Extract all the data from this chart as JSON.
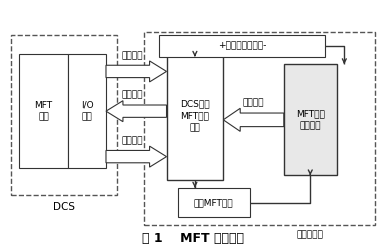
{
  "title": "图 1    MFT 跳闸回路",
  "title_fontsize": 9,
  "fig_bg": "#ffffff",
  "dcs_label": "DCS",
  "hard_label": "硬跳闸回路",
  "box_labels": {
    "mft_logic": "MFT\n逻辑",
    "io_module": "I/O\n模件",
    "dcs_relay": "DCS输出\nMFT继电\n器组",
    "mft_relay": "MFT跳闸\n继电器组",
    "manual_btn": "手动MFT按钮",
    "power_supply": "+硬跳闸回路电源-"
  },
  "arrow_labels": {
    "local_equip_top": "就地设备",
    "local_signal": "就地信号",
    "ctrl_output": "控制输出",
    "local_equip_mid": "就地设备"
  },
  "colors": {
    "line": "#333333",
    "fill_box": "#f0f0f0",
    "fill_white": "#ffffff",
    "dcs_fill": "#e8e8e8"
  },
  "layout": {
    "dcs_outer": [
      0.02,
      0.22,
      0.28,
      0.65
    ],
    "hard_outer": [
      0.37,
      0.1,
      0.61,
      0.78
    ],
    "mft_logic": [
      0.04,
      0.33,
      0.13,
      0.46
    ],
    "io_module": [
      0.17,
      0.33,
      0.1,
      0.46
    ],
    "dcs_relay": [
      0.43,
      0.28,
      0.15,
      0.52
    ],
    "mft_relay": [
      0.74,
      0.3,
      0.14,
      0.45
    ],
    "manual_btn": [
      0.46,
      0.13,
      0.19,
      0.12
    ],
    "power_supply": [
      0.41,
      0.78,
      0.44,
      0.09
    ]
  }
}
